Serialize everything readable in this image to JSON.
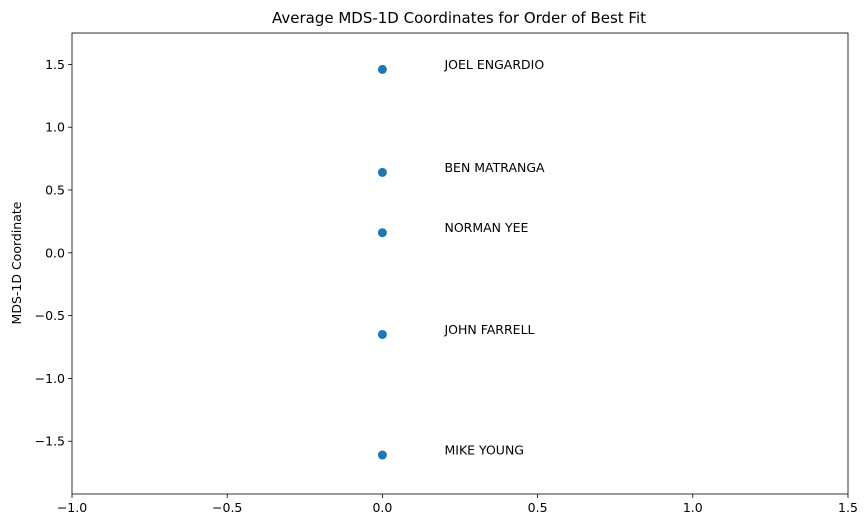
{
  "chart_data": {
    "type": "scatter",
    "title": "Average MDS-1D Coordinates for Order of Best Fit",
    "xlabel": "",
    "ylabel": "MDS-1D Coordinate",
    "xlim": [
      -1.0,
      1.5
    ],
    "ylim": [
      -1.92,
      1.75
    ],
    "xticks": [
      -1.0,
      -0.5,
      0.0,
      0.5,
      1.0,
      1.5
    ],
    "xtick_labels": [
      "−1.0",
      "−0.5",
      "0.0",
      "0.5",
      "1.0",
      "1.5"
    ],
    "yticks": [
      -1.5,
      -1.0,
      -0.5,
      0.0,
      0.5,
      1.0,
      1.5
    ],
    "ytick_labels": [
      "−1.5",
      "−1.0",
      "−0.5",
      "0.0",
      "0.5",
      "1.0",
      "1.5"
    ],
    "grid": false,
    "marker_color": "#1f77b4",
    "points": [
      {
        "label": "JOEL ENGARDIO",
        "x": 0.0,
        "y": 1.46
      },
      {
        "label": "BEN MATRANGA",
        "x": 0.0,
        "y": 0.64
      },
      {
        "label": "NORMAN YEE",
        "x": 0.0,
        "y": 0.16
      },
      {
        "label": "JOHN FARRELL",
        "x": 0.0,
        "y": -0.65
      },
      {
        "label": "MIKE YOUNG",
        "x": 0.0,
        "y": -1.61
      }
    ],
    "annotation_x": 0.2
  }
}
